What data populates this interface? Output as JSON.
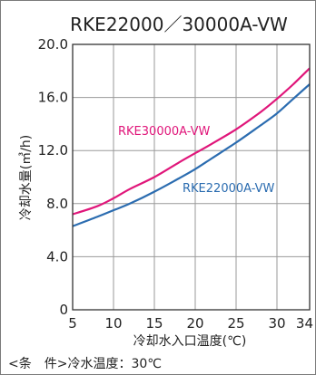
{
  "chart_data": {
    "type": "line",
    "title": "RKE22000／30000A-VW",
    "xlabel": "冷却水入口温度(℃)",
    "ylabel": "冷却水量(㎥/h)",
    "xlim": [
      5,
      34
    ],
    "ylim": [
      0,
      20
    ],
    "x_ticks": [
      "5",
      "10",
      "15",
      "20",
      "25",
      "30",
      "34"
    ],
    "y_ticks": [
      "0",
      "4.0",
      "8.0",
      "12.0",
      "16.0",
      "20.0"
    ],
    "grid": true,
    "series": [
      {
        "name": "RKE30000A-VW",
        "color": "#e0167a",
        "x": [
          5,
          8,
          10,
          12,
          15,
          18,
          20,
          22,
          25,
          28,
          30,
          32,
          34
        ],
        "y": [
          7.2,
          7.8,
          8.4,
          9.1,
          10.0,
          11.1,
          11.8,
          12.5,
          13.6,
          14.9,
          15.9,
          17.0,
          18.2
        ]
      },
      {
        "name": "RKE22000A-VW",
        "color": "#2b6cb0",
        "x": [
          5,
          8,
          10,
          12,
          15,
          18,
          20,
          22,
          25,
          28,
          30,
          32,
          34
        ],
        "y": [
          6.3,
          7.0,
          7.5,
          8.0,
          8.9,
          9.9,
          10.6,
          11.4,
          12.6,
          13.9,
          14.8,
          15.9,
          17.0
        ]
      }
    ],
    "note": "<条　件>冷水温度：30℃"
  }
}
